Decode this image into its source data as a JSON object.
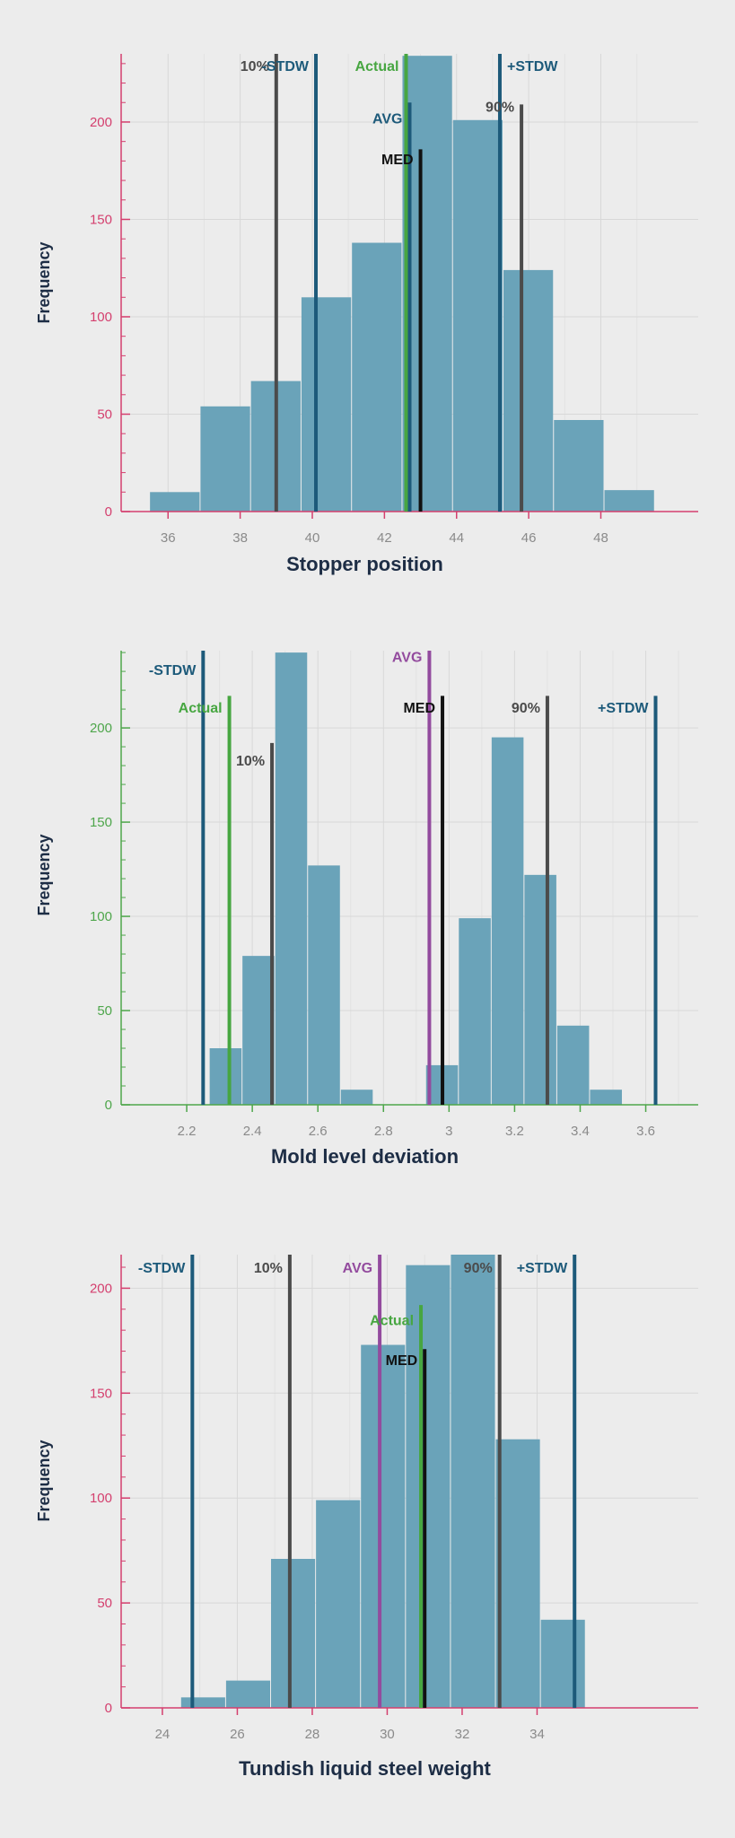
{
  "colors": {
    "background": "#ececec",
    "bar": "#6aa3b9",
    "grid": "#d8d8d8",
    "axis_pink": "#d43f6e",
    "axis_green": "#4ea64b",
    "stdw": "#1d5a7a",
    "percentile": "#4b4b4b",
    "median": "#111111",
    "actual": "#47a641",
    "avg_blue": "#1d5a7a",
    "avg_purple": "#934b9e"
  },
  "chart_data": [
    {
      "type": "bar",
      "title": "",
      "xlabel": "Stopper position",
      "ylabel": "Frequency",
      "xlim": [
        34.7,
        50.7
      ],
      "ylim": [
        0,
        235
      ],
      "xticks": [
        "36",
        "38",
        "40",
        "42",
        "44",
        "46",
        "48"
      ],
      "xtick_values": [
        36,
        38,
        40,
        42,
        44,
        46,
        48
      ],
      "yticks": [
        "0",
        "50",
        "100",
        "150",
        "200"
      ],
      "ytick_values": [
        0,
        50,
        100,
        150,
        200
      ],
      "grid": true,
      "axis_color": "pink",
      "bins": [
        {
          "start": 35.5,
          "end": 36.9,
          "value": 10
        },
        {
          "start": 36.9,
          "end": 38.3,
          "value": 54
        },
        {
          "start": 38.3,
          "end": 39.7,
          "value": 67
        },
        {
          "start": 39.7,
          "end": 41.1,
          "value": 110
        },
        {
          "start": 41.1,
          "end": 42.5,
          "value": 138
        },
        {
          "start": 42.5,
          "end": 43.9,
          "value": 234
        },
        {
          "start": 43.9,
          "end": 45.3,
          "value": 201
        },
        {
          "start": 45.3,
          "end": 46.7,
          "value": 124
        },
        {
          "start": 46.7,
          "end": 48.1,
          "value": 47
        },
        {
          "start": 48.1,
          "end": 49.5,
          "value": 11
        }
      ],
      "markers": [
        {
          "label": "10%",
          "x": 39.0,
          "top": 235,
          "color": "percentile",
          "label_y": 229,
          "label_side": "left"
        },
        {
          "label": "-STDW",
          "x": 40.1,
          "top": 235,
          "color": "stdw",
          "label_y": 229,
          "label_side": "left"
        },
        {
          "label": "Actual",
          "x": 42.6,
          "top": 235,
          "color": "actual",
          "label_y": 229,
          "label_side": "left"
        },
        {
          "label": "AVG",
          "x": 42.7,
          "top": 210,
          "color": "avg_blue",
          "label_y": 202,
          "label_side": "left"
        },
        {
          "label": "MED",
          "x": 43.0,
          "top": 186,
          "color": "median",
          "label_y": 181,
          "label_side": "left"
        },
        {
          "label": "+STDW",
          "x": 45.2,
          "top": 235,
          "color": "stdw",
          "label_y": 229,
          "label_side": "right"
        },
        {
          "label": "90%",
          "x": 45.8,
          "top": 209,
          "color": "percentile",
          "label_y": 208,
          "label_side": "left"
        }
      ]
    },
    {
      "type": "bar",
      "title": "",
      "xlabel": "Mold level deviation",
      "ylabel": "Frequency",
      "xlim": [
        2.0,
        3.76
      ],
      "ylim": [
        0,
        241
      ],
      "xticks": [
        "2.2",
        "2.4",
        "2.6",
        "2.8",
        "3",
        "3.2",
        "3.4",
        "3.6"
      ],
      "xtick_values": [
        2.2,
        2.4,
        2.6,
        2.8,
        3.0,
        3.2,
        3.4,
        3.6
      ],
      "yticks": [
        "0",
        "50",
        "100",
        "150",
        "200"
      ],
      "ytick_values": [
        0,
        50,
        100,
        150,
        200
      ],
      "grid": true,
      "axis_color": "green",
      "bins": [
        {
          "start": 2.27,
          "end": 2.37,
          "value": 30
        },
        {
          "start": 2.37,
          "end": 2.47,
          "value": 79
        },
        {
          "start": 2.47,
          "end": 2.57,
          "value": 240
        },
        {
          "start": 2.57,
          "end": 2.67,
          "value": 127
        },
        {
          "start": 2.67,
          "end": 2.77,
          "value": 8
        },
        {
          "start": 2.93,
          "end": 3.03,
          "value": 21
        },
        {
          "start": 3.03,
          "end": 3.13,
          "value": 99
        },
        {
          "start": 3.13,
          "end": 3.23,
          "value": 195
        },
        {
          "start": 3.23,
          "end": 3.33,
          "value": 122
        },
        {
          "start": 3.33,
          "end": 3.43,
          "value": 42
        },
        {
          "start": 3.43,
          "end": 3.53,
          "value": 8
        }
      ],
      "markers": [
        {
          "label": "-STDW",
          "x": 2.25,
          "top": 241,
          "color": "stdw",
          "label_y": 231,
          "label_side": "left"
        },
        {
          "label": "Actual",
          "x": 2.33,
          "top": 217,
          "color": "actual",
          "label_y": 211,
          "label_side": "left"
        },
        {
          "label": "10%",
          "x": 2.46,
          "top": 192,
          "color": "percentile",
          "label_y": 183,
          "label_side": "left"
        },
        {
          "label": "AVG",
          "x": 2.94,
          "top": 241,
          "color": "avg_purple",
          "label_y": 238,
          "label_side": "left"
        },
        {
          "label": "MED",
          "x": 2.98,
          "top": 217,
          "color": "median",
          "label_y": 211,
          "label_side": "left"
        },
        {
          "label": "90%",
          "x": 3.3,
          "top": 217,
          "color": "percentile",
          "label_y": 211,
          "label_side": "left"
        },
        {
          "label": "+STDW",
          "x": 3.63,
          "top": 217,
          "color": "stdw",
          "label_y": 211,
          "label_side": "left"
        }
      ]
    },
    {
      "type": "bar",
      "title": "",
      "xlabel": "Tundish liquid steel weight",
      "ylabel": "Frequency",
      "xlim": [
        22.9,
        38.3
      ],
      "ylim": [
        0,
        216
      ],
      "xticks": [
        "24",
        "26",
        "28",
        "30",
        "32",
        "34"
      ],
      "xtick_values": [
        24,
        26,
        28,
        30,
        32,
        34
      ],
      "yticks": [
        "0",
        "50",
        "100",
        "150",
        "200"
      ],
      "ytick_values": [
        0,
        50,
        100,
        150,
        200
      ],
      "grid": true,
      "axis_color": "pink",
      "bins": [
        {
          "start": 24.5,
          "end": 25.7,
          "value": 5
        },
        {
          "start": 25.7,
          "end": 26.9,
          "value": 13
        },
        {
          "start": 26.9,
          "end": 28.1,
          "value": 71
        },
        {
          "start": 28.1,
          "end": 29.3,
          "value": 99
        },
        {
          "start": 29.3,
          "end": 30.5,
          "value": 173
        },
        {
          "start": 30.5,
          "end": 31.7,
          "value": 211
        },
        {
          "start": 31.7,
          "end": 32.9,
          "value": 216
        },
        {
          "start": 32.9,
          "end": 34.1,
          "value": 128
        },
        {
          "start": 34.1,
          "end": 35.3,
          "value": 42
        }
      ],
      "markers": [
        {
          "label": "-STDW",
          "x": 24.8,
          "top": 216,
          "color": "stdw",
          "label_y": 210,
          "label_side": "left"
        },
        {
          "label": "10%",
          "x": 27.4,
          "top": 216,
          "color": "percentile",
          "label_y": 210,
          "label_side": "left"
        },
        {
          "label": "AVG",
          "x": 29.8,
          "top": 216,
          "color": "avg_purple",
          "label_y": 210,
          "label_side": "left"
        },
        {
          "label": "Actual",
          "x": 30.9,
          "top": 192,
          "color": "actual",
          "label_y": 185,
          "label_side": "left"
        },
        {
          "label": "MED",
          "x": 31.0,
          "top": 171,
          "color": "median",
          "label_y": 166,
          "label_side": "left"
        },
        {
          "label": "90%",
          "x": 33.0,
          "top": 216,
          "color": "percentile",
          "label_y": 210,
          "label_side": "left"
        },
        {
          "label": "+STDW",
          "x": 35.0,
          "top": 216,
          "color": "stdw",
          "label_y": 210,
          "label_side": "left"
        }
      ]
    }
  ]
}
